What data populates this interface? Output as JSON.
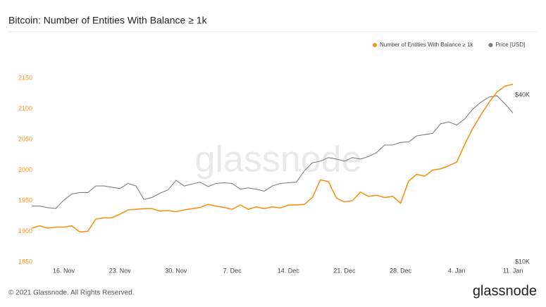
{
  "chart_data": {
    "type": "line",
    "title": "Bitcoin: Number of Entities With Balance ≥ 1k",
    "watermark": "glassnode",
    "logo": "glassnode",
    "copyright": "© 2021 Glassnode. All Rights Reserved.",
    "categories": [
      null,
      null,
      null,
      null,
      "16. Nov",
      null,
      null,
      null,
      null,
      null,
      null,
      "23. Nov",
      null,
      null,
      null,
      null,
      null,
      null,
      "30. Nov",
      null,
      null,
      null,
      null,
      null,
      null,
      "7. Dec",
      null,
      null,
      null,
      null,
      null,
      null,
      "14. Dec",
      null,
      null,
      null,
      null,
      null,
      null,
      "21. Dec",
      null,
      null,
      null,
      null,
      null,
      null,
      "28. Dec",
      null,
      null,
      null,
      null,
      null,
      null,
      "4. Jan",
      null,
      null,
      null,
      null,
      null,
      null,
      "11. Jan"
    ],
    "series": [
      {
        "name": "Number of Entities With Balance ≥ 1k",
        "color": "#f7931a",
        "values": [
          1905,
          1909,
          1905,
          1907,
          1907,
          1909,
          1899,
          1900,
          1920,
          1922,
          1922,
          1928,
          1935,
          1936,
          1937,
          1937,
          1933,
          1934,
          1932,
          1935,
          1937,
          1939,
          1944,
          1941,
          1939,
          1936,
          1943,
          1936,
          1940,
          1937,
          1940,
          1938,
          1943,
          1943,
          1944,
          1955,
          1984,
          1981,
          1954,
          1948,
          1950,
          1964,
          1957,
          1959,
          1955,
          1957,
          1946,
          1982,
          1993,
          1990,
          2000,
          2002,
          2007,
          2013,
          2042,
          2068,
          2090,
          2110,
          2127,
          2137,
          2140
        ]
      },
      {
        "name": "Price [USD]",
        "color": "#808080",
        "axis": "y2",
        "values": [
          15900,
          15900,
          15700,
          15600,
          16700,
          17600,
          17800,
          17800,
          18800,
          18800,
          18600,
          18400,
          19200,
          18800,
          16800,
          17100,
          17700,
          18200,
          19700,
          18800,
          19100,
          19400,
          18700,
          19200,
          19300,
          19200,
          18300,
          18500,
          18300,
          18000,
          18800,
          19200,
          19300,
          19400,
          21300,
          22800,
          23100,
          23800,
          23500,
          23100,
          23800,
          23500,
          24000,
          24800,
          26400,
          26400,
          27000,
          27100,
          28500,
          28800,
          29100,
          31500,
          32000,
          31200,
          32800,
          35600,
          37700,
          39300,
          39800,
          37200,
          34500
        ]
      }
    ],
    "ylim": [
      1850,
      2150
    ],
    "yticks": [
      1850,
      1900,
      1950,
      2000,
      2050,
      2100,
      2150
    ],
    "y2lim": [
      10000,
      40000
    ],
    "y2scale": "log",
    "y2ticks": [
      {
        "value": 10000,
        "label": "$10K"
      },
      {
        "value": 40000,
        "label": "$40K"
      }
    ],
    "grid": false,
    "legend": "top-right"
  }
}
